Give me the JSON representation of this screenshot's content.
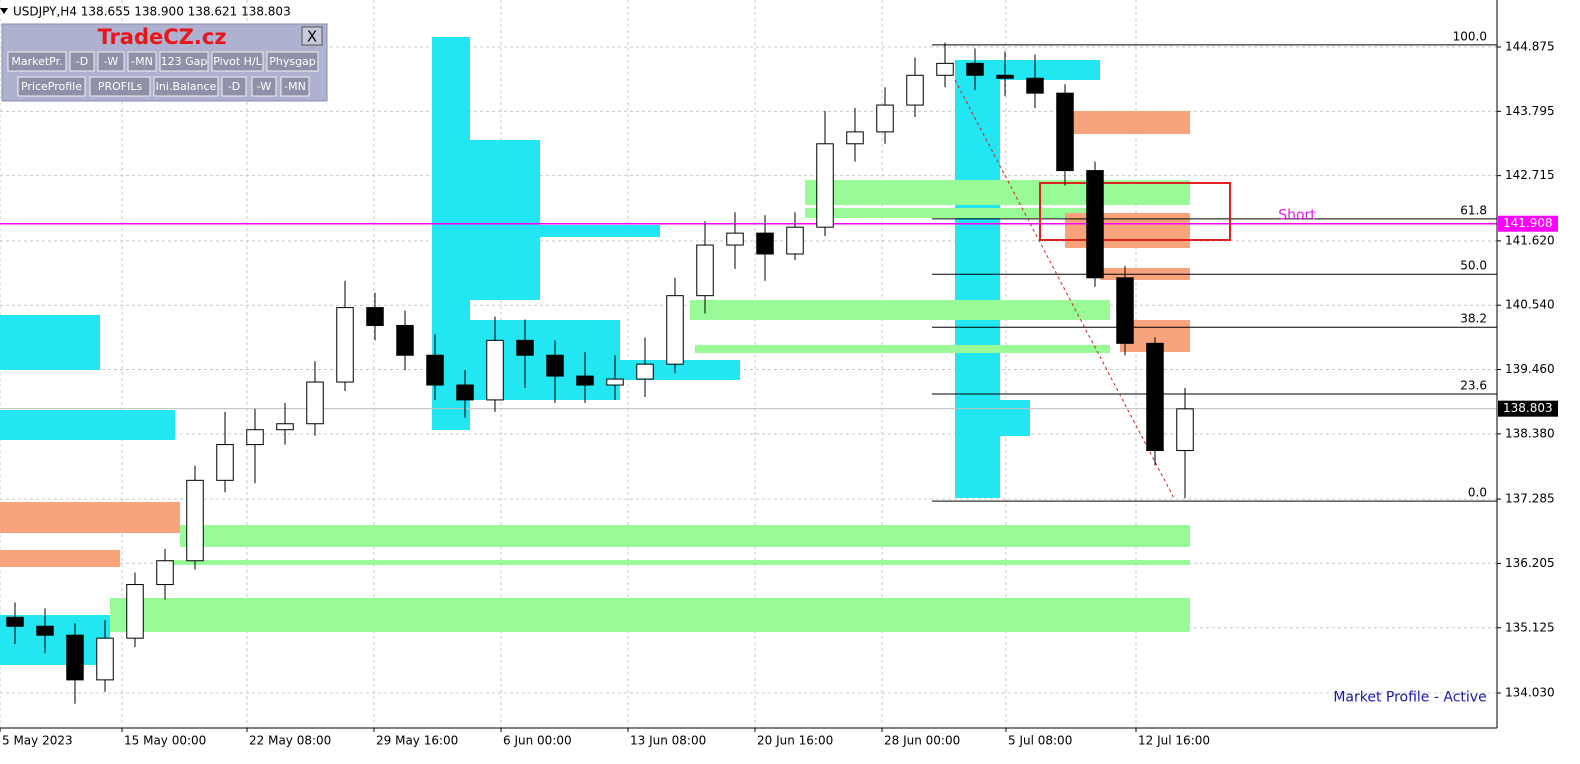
{
  "chart_data": {
    "type": "candlestick",
    "title": "USDJPY,H4  138.655 138.900 138.621 138.803",
    "x": [
      3.75,
      11.25,
      18.75,
      26.25,
      33.75,
      41.25,
      48.75,
      56.25,
      63.75,
      71.25,
      78.75,
      86.25,
      93.75,
      101.25,
      108.75,
      116.25,
      123.75,
      131.25,
      138.75,
      146.25,
      153.75,
      161.25,
      168.75,
      176.25,
      183.75,
      191.25,
      198.75,
      206.25,
      213.75,
      221.25,
      228.75,
      236.25,
      243.75,
      251.25,
      258.75,
      266.25,
      273.75,
      281.25,
      288.75,
      296.25
    ],
    "open": [
      135.3,
      135.15,
      135.0,
      134.25,
      134.95,
      135.85,
      136.25,
      137.6,
      138.2,
      138.45,
      138.55,
      139.25,
      140.5,
      140.2,
      139.7,
      139.2,
      138.95,
      139.95,
      139.7,
      139.35,
      139.2,
      139.3,
      139.55,
      140.7,
      141.55,
      141.75,
      141.4,
      141.85,
      143.25,
      143.45,
      143.9,
      144.4,
      144.6,
      144.4,
      144.35,
      144.1,
      142.8,
      141.0,
      139.9,
      138.1
    ],
    "high": [
      135.55,
      135.45,
      135.2,
      135.25,
      136.05,
      136.45,
      137.85,
      138.75,
      138.8,
      138.9,
      139.6,
      140.95,
      140.75,
      140.45,
      140.05,
      139.45,
      140.35,
      140.3,
      139.95,
      139.75,
      139.7,
      140.0,
      141.0,
      141.95,
      142.1,
      142.05,
      142.1,
      143.8,
      143.85,
      144.2,
      144.7,
      144.95,
      144.85,
      144.8,
      144.75,
      144.25,
      142.95,
      141.2,
      140.0,
      139.15
    ],
    "low": [
      134.85,
      134.7,
      133.85,
      134.05,
      134.8,
      135.6,
      136.1,
      137.4,
      137.55,
      138.2,
      138.35,
      139.1,
      139.95,
      139.45,
      138.95,
      138.65,
      138.75,
      139.15,
      138.9,
      138.9,
      138.95,
      139.0,
      139.4,
      140.4,
      141.15,
      140.95,
      141.3,
      141.7,
      142.95,
      143.25,
      143.7,
      144.2,
      144.15,
      144.05,
      143.85,
      142.55,
      140.85,
      139.7,
      137.85,
      137.3
    ],
    "close": [
      135.15,
      135.0,
      134.25,
      134.95,
      135.85,
      136.25,
      137.6,
      138.2,
      138.45,
      138.55,
      139.25,
      140.5,
      140.2,
      139.7,
      139.2,
      138.95,
      139.95,
      139.7,
      139.35,
      139.2,
      139.3,
      139.55,
      140.7,
      141.55,
      141.75,
      141.4,
      141.85,
      143.25,
      143.45,
      143.9,
      144.4,
      144.6,
      144.4,
      144.35,
      144.1,
      142.8,
      141.0,
      139.9,
      138.1,
      138.8
    ],
    "up_color": "#ffffff",
    "down_color": "#000000",
    "xlim": [
      0,
      374.25
    ],
    "ylim": [
      133.442,
      145.664
    ],
    "xticks": [
      {
        "value": 0,
        "label": "5 May 2023"
      },
      {
        "value": 30.5,
        "label": "15 May 00:00"
      },
      {
        "value": 61.75,
        "label": "22 May 08:00"
      },
      {
        "value": 93.5,
        "label": "29 May 16:00"
      },
      {
        "value": 125.25,
        "label": "6 Jun 00:00"
      },
      {
        "value": 157,
        "label": "13 Jun 08:00"
      },
      {
        "value": 188.75,
        "label": "20 Jun 16:00"
      },
      {
        "value": 220.5,
        "label": "28 Jun 00:00"
      },
      {
        "value": 251.5,
        "label": "5 Jul 08:00"
      },
      {
        "value": 284,
        "label": "12 Jul 16:00"
      }
    ],
    "yticks": [
      144.875,
      143.795,
      142.715,
      {
        "value": 141.62,
        "label": "141.620"
      },
      {
        "value": 140.54,
        "label": "140.540"
      },
      {
        "value": 139.46,
        "label": "139.460"
      },
      {
        "value": 138.38,
        "label": "138.380"
      },
      137.285,
      136.205,
      135.125,
      {
        "value": 134.03,
        "label": "134.030"
      }
    ],
    "grid": true,
    "zones": [
      {
        "x": [
          108,
          117.5
        ],
        "y": [
          145.043,
          138.445
        ],
        "color": "#22e6f2"
      },
      {
        "x": [
          108,
          135
        ],
        "y": [
          143.314,
          140.628
        ],
        "color": "#22e6f2"
      },
      {
        "x": [
          108,
          155
        ],
        "y": [
          140.292,
          138.949
        ],
        "color": "#22e6f2"
      },
      {
        "x": [
          108,
          185
        ],
        "y": [
          139.62,
          139.285
        ],
        "color": "#22e6f2"
      },
      {
        "x": [
          108,
          165
        ],
        "y": [
          141.887,
          141.685
        ],
        "color": "#22e6f2"
      },
      {
        "x": [
          238.75,
          250
        ],
        "y": [
          144.657,
          137.304
        ],
        "color": "#22e6f2"
      },
      {
        "x": [
          238.75,
          257.5
        ],
        "y": [
          138.949,
          138.345
        ],
        "color": "#22e6f2"
      },
      {
        "x": [
          238.75,
          275
        ],
        "y": [
          144.657,
          144.321
        ],
        "color": "#22e6f2"
      },
      {
        "x": [
          0,
          25
        ],
        "y": [
          140.376,
          139.453
        ],
        "color": "#22e6f2"
      },
      {
        "x": [
          0,
          43.75
        ],
        "y": [
          138.781,
          138.277
        ],
        "color": "#22e6f2"
      },
      {
        "x": [
          0,
          27.5
        ],
        "y": [
          135.34,
          134.5
        ],
        "color": "#22e6f2"
      },
      {
        "x": [
          201.25,
          297.5
        ],
        "y": [
          142.642,
          142.222
        ],
        "color": "#98fb98"
      },
      {
        "x": [
          201.25,
          272.5
        ],
        "y": [
          142.172,
          142.004
        ],
        "color": "#98fb98"
      },
      {
        "x": [
          172.5,
          277.5
        ],
        "y": [
          140.628,
          140.292
        ],
        "color": "#98fb98"
      },
      {
        "x": [
          173.75,
          277.5
        ],
        "y": [
          139.873,
          139.738
        ],
        "color": "#98fb98"
      },
      {
        "x": [
          45,
          297.5
        ],
        "y": [
          136.85,
          136.481
        ],
        "color": "#98fb98"
      },
      {
        "x": [
          42.5,
          297.5
        ],
        "y": [
          136.263,
          136.179
        ],
        "color": "#98fb98"
      },
      {
        "x": [
          27.5,
          297.5
        ],
        "y": [
          135.625,
          135.054
        ],
        "color": "#98fb98"
      },
      {
        "x": [
          264.5,
          297.5
        ],
        "y": [
          143.801,
          143.414
        ],
        "color": "#f9a37c"
      },
      {
        "x": [
          266.25,
          297.5
        ],
        "y": [
          142.088,
          141.501
        ],
        "color": "#f9a37c"
      },
      {
        "x": [
          275,
          297.5
        ],
        "y": [
          141.165,
          140.963
        ],
        "color": "#f9a37c"
      },
      {
        "x": [
          280,
          297.5
        ],
        "y": [
          140.292,
          139.755
        ],
        "color": "#f9a37c"
      },
      {
        "x": [
          0,
          45
        ],
        "y": [
          137.237,
          136.716
        ],
        "color": "#f9a37c"
      },
      {
        "x": [
          0,
          30
        ],
        "y": [
          136.431,
          136.145
        ],
        "color": "#f9a37c"
      }
    ],
    "box": {
      "x": [
        260,
        307.5
      ],
      "y": [
        142.592,
        141.635
      ],
      "color": "#e02020"
    },
    "trendline": {
      "x": [
        238.75,
        293.75
      ],
      "y": [
        144.321,
        137.27
      ],
      "color": "#cc2222"
    },
    "fib_levels": [
      {
        "label": "100.0",
        "value": 144.91
      },
      {
        "label": "61.8",
        "value": 141.99
      },
      {
        "label": "50.0",
        "value": 141.06
      },
      {
        "label": "38.2",
        "value": 140.17
      },
      {
        "label": "23.6",
        "value": 139.05
      },
      {
        "label": "0.0",
        "value": 137.25
      }
    ],
    "fib_start": 233,
    "price_lines": [
      {
        "value": 141.908,
        "color": "#ff00ff"
      },
      {
        "value": 138.803,
        "color": "#c0c0c0",
        "box_color": "#000000"
      }
    ],
    "annotations": [
      {
        "text": "Short",
        "x": 324.25,
        "y": 142.05,
        "color": "#e020e0"
      },
      {
        "text": "Market Profile - Active",
        "x": 352.5,
        "y": 133.95,
        "color": "#1a1aa8"
      }
    ]
  },
  "panel": {
    "title": "TradeCZ.cz",
    "close": "X",
    "buttons": [
      [
        "MarketPr.",
        "-D",
        "-W",
        "-MN",
        "123 Gap",
        "Pivot H/L",
        "Physgap"
      ],
      [
        "PriceProfile",
        "PROFILs",
        "Ini.Balance",
        "-D",
        "-W",
        "-MN"
      ]
    ]
  }
}
